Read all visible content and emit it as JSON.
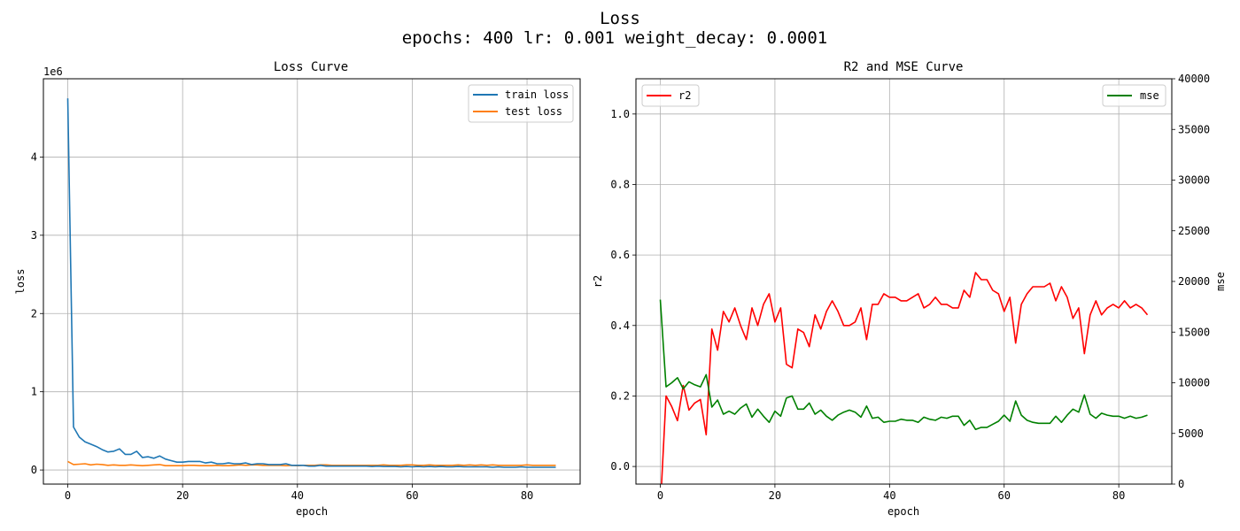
{
  "suptitle": [
    "Loss",
    "epochs: 400 lr: 0.001 weight_decay: 0.0001"
  ],
  "colors": {
    "train_loss": "#1f77b4",
    "test_loss": "#ff7f0e",
    "r2": "#ff0000",
    "mse": "#008000",
    "grid": "#b0b0b0"
  },
  "chart_data": [
    {
      "type": "line",
      "title": "Loss Curve",
      "xlabel": "epoch",
      "ylabel": "loss",
      "offset_text": "1e6",
      "xlim": [
        -4.25,
        89.25
      ],
      "ylim": [
        -0.18,
        5.0
      ],
      "xticks": [
        0,
        20,
        40,
        60,
        80
      ],
      "yticks": [
        0,
        1,
        2,
        3,
        4
      ],
      "grid": true,
      "legend": "upper right",
      "series": [
        {
          "name": "train loss",
          "color": "#1f77b4",
          "x": [
            0,
            1,
            2,
            3,
            4,
            5,
            6,
            7,
            8,
            9,
            10,
            11,
            12,
            13,
            14,
            15,
            16,
            17,
            18,
            19,
            20,
            21,
            22,
            23,
            24,
            25,
            26,
            27,
            28,
            29,
            30,
            31,
            32,
            33,
            34,
            35,
            36,
            37,
            38,
            39,
            40,
            41,
            42,
            43,
            44,
            45,
            46,
            47,
            48,
            49,
            50,
            51,
            52,
            53,
            54,
            55,
            56,
            57,
            58,
            59,
            60,
            61,
            62,
            63,
            64,
            65,
            66,
            67,
            68,
            69,
            70,
            71,
            72,
            73,
            74,
            75,
            76,
            77,
            78,
            79,
            80,
            81,
            82,
            83,
            84,
            85
          ],
          "values": [
            4.75,
            0.55,
            0.42,
            0.36,
            0.33,
            0.3,
            0.26,
            0.23,
            0.24,
            0.27,
            0.2,
            0.2,
            0.24,
            0.16,
            0.17,
            0.15,
            0.18,
            0.14,
            0.12,
            0.1,
            0.1,
            0.11,
            0.11,
            0.11,
            0.09,
            0.1,
            0.08,
            0.08,
            0.09,
            0.08,
            0.08,
            0.09,
            0.07,
            0.08,
            0.08,
            0.07,
            0.07,
            0.07,
            0.08,
            0.06,
            0.06,
            0.06,
            0.05,
            0.05,
            0.06,
            0.05,
            0.05,
            0.05,
            0.05,
            0.05,
            0.05,
            0.05,
            0.05,
            0.045,
            0.05,
            0.045,
            0.045,
            0.045,
            0.04,
            0.045,
            0.04,
            0.045,
            0.04,
            0.045,
            0.04,
            0.045,
            0.04,
            0.04,
            0.045,
            0.04,
            0.04,
            0.04,
            0.04,
            0.04,
            0.035,
            0.04,
            0.035,
            0.035,
            0.035,
            0.04,
            0.035,
            0.035,
            0.035,
            0.035,
            0.035,
            0.035
          ]
        },
        {
          "name": "test loss",
          "color": "#ff7f0e",
          "x": [
            0,
            1,
            2,
            3,
            4,
            5,
            6,
            7,
            8,
            9,
            10,
            11,
            12,
            13,
            14,
            15,
            16,
            17,
            18,
            19,
            20,
            21,
            22,
            23,
            24,
            25,
            26,
            27,
            28,
            29,
            30,
            31,
            32,
            33,
            34,
            35,
            36,
            37,
            38,
            39,
            40,
            41,
            42,
            43,
            44,
            45,
            46,
            47,
            48,
            49,
            50,
            51,
            52,
            53,
            54,
            55,
            56,
            57,
            58,
            59,
            60,
            61,
            62,
            63,
            64,
            65,
            66,
            67,
            68,
            69,
            70,
            71,
            72,
            73,
            74,
            75,
            76,
            77,
            78,
            79,
            80,
            81,
            82,
            83,
            84,
            85
          ],
          "values": [
            0.11,
            0.07,
            0.075,
            0.08,
            0.065,
            0.075,
            0.07,
            0.06,
            0.065,
            0.06,
            0.06,
            0.065,
            0.06,
            0.055,
            0.06,
            0.065,
            0.07,
            0.055,
            0.055,
            0.055,
            0.055,
            0.06,
            0.06,
            0.055,
            0.055,
            0.055,
            0.06,
            0.055,
            0.055,
            0.06,
            0.065,
            0.06,
            0.065,
            0.065,
            0.06,
            0.06,
            0.06,
            0.06,
            0.055,
            0.06,
            0.055,
            0.06,
            0.06,
            0.06,
            0.065,
            0.065,
            0.06,
            0.06,
            0.06,
            0.06,
            0.06,
            0.06,
            0.06,
            0.06,
            0.06,
            0.065,
            0.06,
            0.06,
            0.06,
            0.065,
            0.065,
            0.06,
            0.06,
            0.065,
            0.06,
            0.06,
            0.06,
            0.06,
            0.065,
            0.06,
            0.065,
            0.06,
            0.065,
            0.06,
            0.065,
            0.06,
            0.06,
            0.06,
            0.06,
            0.06,
            0.065,
            0.06,
            0.06,
            0.06,
            0.06,
            0.06
          ]
        }
      ]
    },
    {
      "type": "line",
      "title": "R2 and MSE Curve",
      "xlabel": "epoch",
      "ylabel": "r2",
      "ylabel_right": "mse",
      "xlim": [
        -4.25,
        89.25
      ],
      "ylim": [
        -0.05,
        1.1
      ],
      "ylim_right": [
        0,
        40000
      ],
      "xticks": [
        0,
        20,
        40,
        60,
        80
      ],
      "yticks": [
        0.0,
        0.2,
        0.4,
        0.6,
        0.8,
        1.0
      ],
      "yticks_right": [
        0,
        5000,
        10000,
        15000,
        20000,
        25000,
        30000,
        35000,
        40000
      ],
      "grid": true,
      "legend": [
        "upper left",
        "upper right"
      ],
      "series": [
        {
          "name": "r2",
          "color": "#ff0000",
          "axis": "left",
          "x": [
            0,
            1,
            2,
            3,
            4,
            5,
            6,
            7,
            8,
            9,
            10,
            11,
            12,
            13,
            14,
            15,
            16,
            17,
            18,
            19,
            20,
            21,
            22,
            23,
            24,
            25,
            26,
            27,
            28,
            29,
            30,
            31,
            32,
            33,
            34,
            35,
            36,
            37,
            38,
            39,
            40,
            41,
            42,
            43,
            44,
            45,
            46,
            47,
            48,
            49,
            50,
            51,
            52,
            53,
            54,
            55,
            56,
            57,
            58,
            59,
            60,
            61,
            62,
            63,
            64,
            65,
            66,
            67,
            68,
            69,
            70,
            71,
            72,
            73,
            74,
            75,
            76,
            77,
            78,
            79,
            80,
            81,
            82,
            83,
            84,
            85
          ],
          "values": [
            -0.12,
            0.2,
            0.17,
            0.13,
            0.23,
            0.16,
            0.18,
            0.19,
            0.09,
            0.39,
            0.33,
            0.44,
            0.41,
            0.45,
            0.4,
            0.36,
            0.45,
            0.4,
            0.46,
            0.49,
            0.41,
            0.45,
            0.29,
            0.28,
            0.39,
            0.38,
            0.34,
            0.43,
            0.39,
            0.44,
            0.47,
            0.44,
            0.4,
            0.4,
            0.41,
            0.45,
            0.36,
            0.46,
            0.46,
            0.49,
            0.48,
            0.48,
            0.47,
            0.47,
            0.48,
            0.49,
            0.45,
            0.46,
            0.48,
            0.46,
            0.46,
            0.45,
            0.45,
            0.5,
            0.48,
            0.55,
            0.53,
            0.53,
            0.5,
            0.49,
            0.44,
            0.48,
            0.35,
            0.46,
            0.49,
            0.51,
            0.51,
            0.51,
            0.52,
            0.47,
            0.51,
            0.48,
            0.42,
            0.45,
            0.32,
            0.43,
            0.47,
            0.43,
            0.45,
            0.46,
            0.45,
            0.47,
            0.45,
            0.46,
            0.45,
            0.43
          ]
        },
        {
          "name": "mse",
          "color": "#008000",
          "axis": "right",
          "x": [
            0,
            1,
            2,
            3,
            4,
            5,
            6,
            7,
            8,
            9,
            10,
            11,
            12,
            13,
            14,
            15,
            16,
            17,
            18,
            19,
            20,
            21,
            22,
            23,
            24,
            25,
            26,
            27,
            28,
            29,
            30,
            31,
            32,
            33,
            34,
            35,
            36,
            37,
            38,
            39,
            40,
            41,
            42,
            43,
            44,
            45,
            46,
            47,
            48,
            49,
            50,
            51,
            52,
            53,
            54,
            55,
            56,
            57,
            58,
            59,
            60,
            61,
            62,
            63,
            64,
            65,
            66,
            67,
            68,
            69,
            70,
            71,
            72,
            73,
            74,
            75,
            76,
            77,
            78,
            79,
            80,
            81,
            82,
            83,
            84,
            85
          ],
          "values": [
            18200,
            9600,
            10000,
            10500,
            9400,
            10100,
            9800,
            9600,
            10800,
            7600,
            8300,
            6900,
            7200,
            6900,
            7500,
            7900,
            6600,
            7400,
            6700,
            6100,
            7200,
            6700,
            8500,
            8700,
            7400,
            7400,
            8000,
            6900,
            7300,
            6700,
            6300,
            6800,
            7100,
            7300,
            7100,
            6600,
            7700,
            6500,
            6600,
            6100,
            6200,
            6200,
            6400,
            6300,
            6300,
            6100,
            6600,
            6400,
            6300,
            6600,
            6500,
            6700,
            6700,
            5800,
            6300,
            5400,
            5600,
            5600,
            5900,
            6200,
            6800,
            6200,
            8200,
            6800,
            6300,
            6100,
            6000,
            6000,
            6000,
            6700,
            6100,
            6800,
            7400,
            7100,
            8800,
            6900,
            6500,
            7000,
            6800,
            6700,
            6700,
            6500,
            6700,
            6500,
            6600,
            6800
          ]
        }
      ]
    }
  ]
}
